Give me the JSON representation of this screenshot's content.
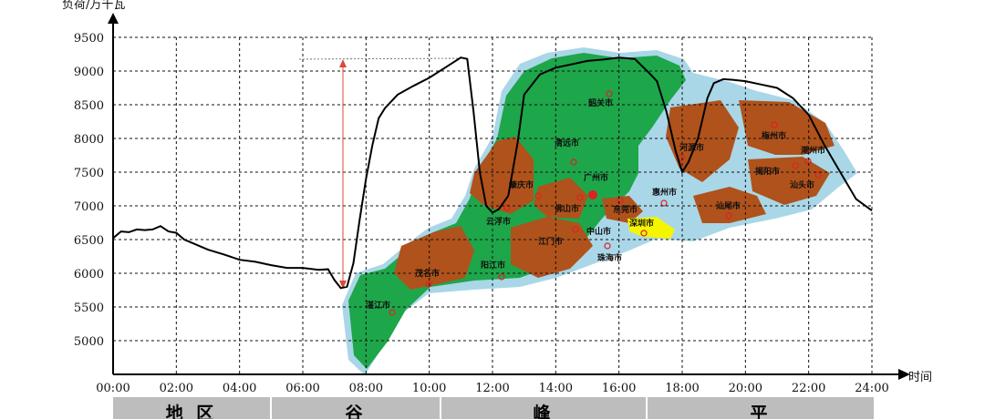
{
  "chart_data": {
    "type": "line",
    "ylabel": "负荷/万千瓦",
    "xlabel": "时间",
    "ylim": [
      4500,
      9500
    ],
    "xlim": [
      0,
      24
    ],
    "yticks": [
      "9500",
      "9000",
      "8500",
      "8000",
      "7500",
      "7000",
      "6500",
      "6000",
      "5500",
      "5000"
    ],
    "xticks": [
      "00:00",
      "02:00",
      "04:00",
      "06:00",
      "08:00",
      "10:00",
      "12:00",
      "14:00",
      "16:00",
      "18:00",
      "20:00",
      "22:00",
      "24:00"
    ],
    "grid": true,
    "series": [
      {
        "x": [
          0,
          0.25,
          0.5,
          0.75,
          1.0,
          1.25,
          1.5,
          1.75,
          2.0,
          2.25,
          2.5,
          3,
          3.5,
          4,
          4.5,
          5,
          5.5,
          6,
          6.5,
          6.8,
          7.0,
          7.2,
          7.4,
          7.6,
          7.8,
          8.0,
          8.2,
          8.4,
          8.6,
          9.0,
          9.5,
          10.0,
          10.5,
          11.0,
          11.2,
          11.4,
          11.6,
          11.8,
          12.0,
          12.2,
          12.5,
          12.8,
          13.0,
          13.5,
          14,
          14.5,
          15,
          15.5,
          16,
          16.5,
          17,
          17.2,
          17.5,
          17.8,
          18.0,
          18.2,
          18.5,
          18.8,
          19.0,
          19.3,
          19.6,
          20,
          20.5,
          21,
          21.5,
          22,
          22.5,
          23,
          23.5,
          24.0
        ],
        "values": [
          6520,
          6620,
          6610,
          6650,
          6640,
          6650,
          6700,
          6620,
          6600,
          6500,
          6450,
          6350,
          6280,
          6200,
          6170,
          6120,
          6080,
          6080,
          6050,
          6060,
          5900,
          5780,
          5800,
          6150,
          6800,
          7400,
          7900,
          8300,
          8450,
          8650,
          8780,
          8900,
          9050,
          9200,
          9180,
          8400,
          7500,
          7000,
          6900,
          6950,
          7150,
          7950,
          8650,
          8950,
          9050,
          9100,
          9150,
          9170,
          9200,
          9180,
          8950,
          8850,
          8400,
          7800,
          7500,
          7650,
          8000,
          8600,
          8820,
          8880,
          8870,
          8850,
          8800,
          8750,
          8600,
          8350,
          7900,
          7500,
          7100,
          6930
        ]
      }
    ],
    "period_labels": [
      "地 区",
      "谷",
      "峰",
      "平"
    ],
    "annotation": "peak-valley difference arrow",
    "cities": [
      "韶关市",
      "清远市",
      "河源市",
      "梅州市",
      "潮州市",
      "肇庆市",
      "广州市",
      "惠州市",
      "揭阳市",
      "汕头市",
      "云浮市",
      "佛山市",
      "东莞市",
      "汕尾市",
      "中山市",
      "深圳市",
      "江门市",
      "珠海市",
      "阳江市",
      "茂名市",
      "湛江市"
    ]
  },
  "colors": {
    "background": "#ffffff",
    "grid": "#111111",
    "curve": "#000000",
    "arrow": "#d94a3a",
    "map_halo": "#a9d7e8",
    "map_green": "#1ea64a",
    "map_orange": "#b0521b",
    "map_yellow": "#f5f500",
    "period_bar": "#bdbdbd"
  }
}
